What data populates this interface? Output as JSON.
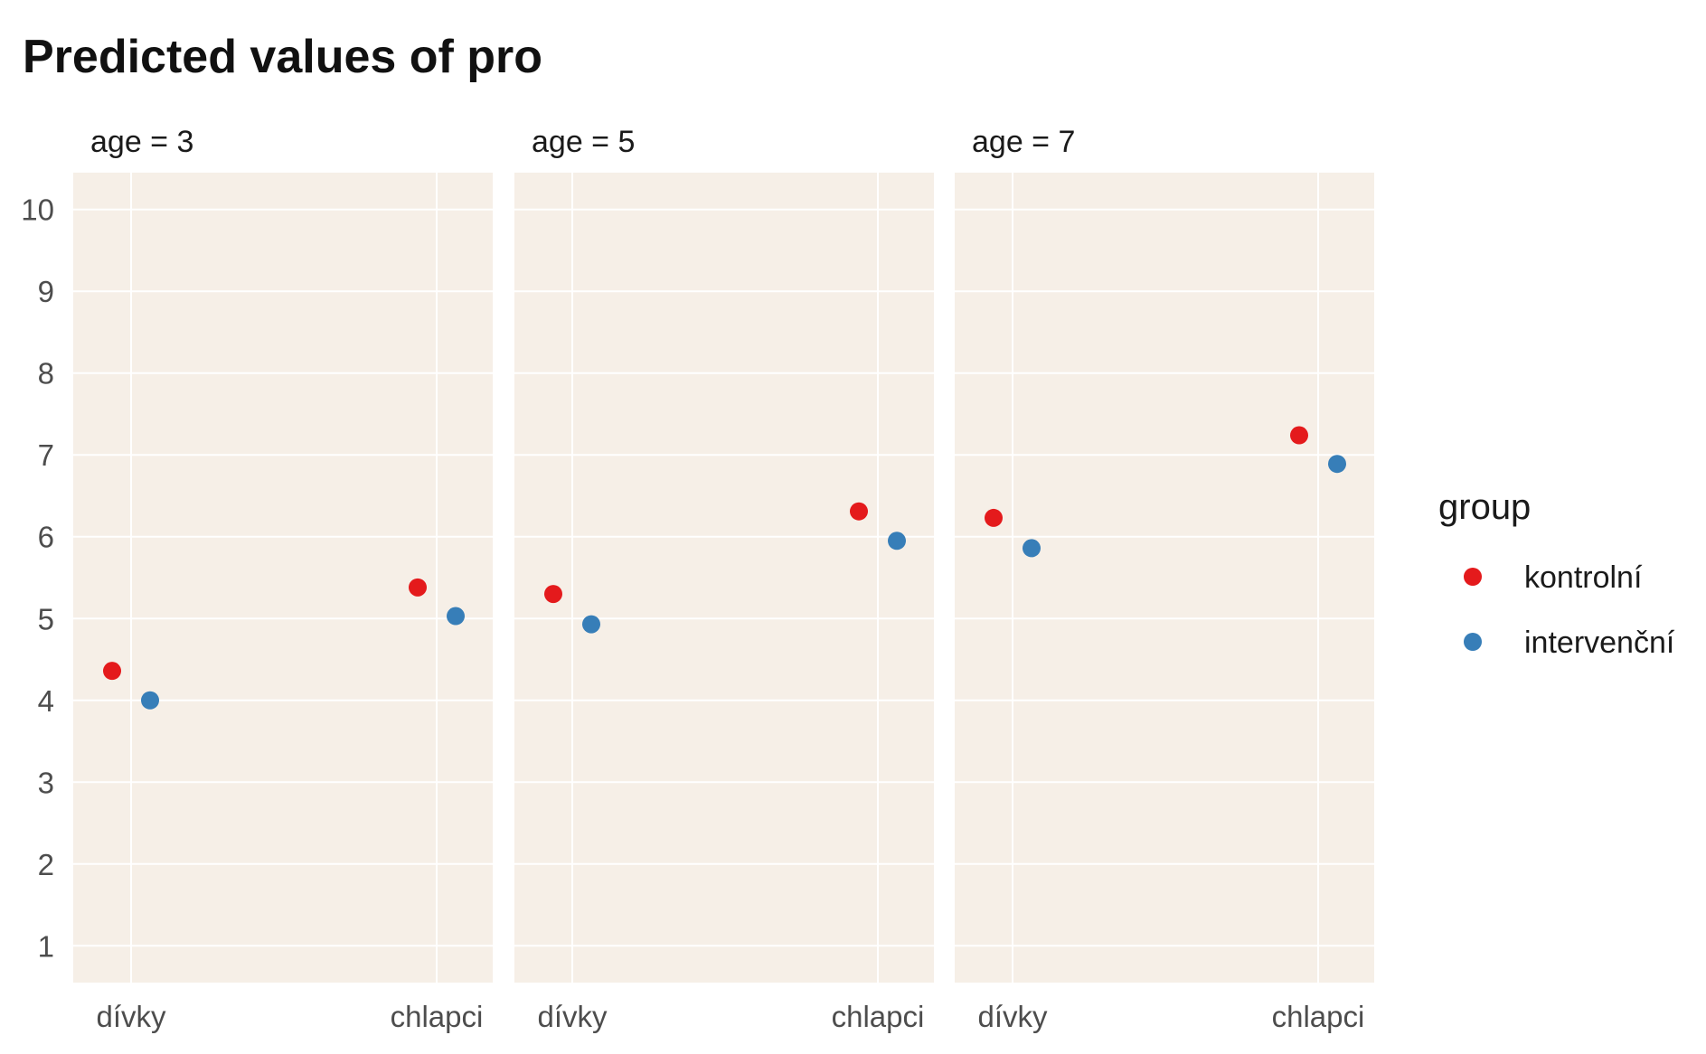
{
  "chart_data": {
    "type": "scatter",
    "title": "Predicted values of pro",
    "xlabel": "",
    "ylabel": "",
    "ylim": [
      0.55,
      10.45
    ],
    "yticks": [
      1,
      2,
      3,
      4,
      5,
      6,
      7,
      8,
      9,
      10
    ],
    "categories": [
      "dívky",
      "chlapci"
    ],
    "grid": true,
    "panel_background": "#f6efe7",
    "facets": [
      {
        "label": "age = 3",
        "series": [
          {
            "name": "kontrolní",
            "values": [
              4.36,
              5.38
            ]
          },
          {
            "name": "intervenční",
            "values": [
              4.0,
              5.03
            ]
          }
        ]
      },
      {
        "label": "age = 5",
        "series": [
          {
            "name": "kontrolní",
            "values": [
              5.3,
              6.31
            ]
          },
          {
            "name": "intervenční",
            "values": [
              4.93,
              5.95
            ]
          }
        ]
      },
      {
        "label": "age = 7",
        "series": [
          {
            "name": "kontrolní",
            "values": [
              6.23,
              7.24
            ]
          },
          {
            "name": "intervenční",
            "values": [
              5.86,
              6.89
            ]
          }
        ]
      }
    ],
    "legend": {
      "title": "group",
      "placement": "right",
      "entries": [
        {
          "name": "kontrolní",
          "color": "#e41a1c"
        },
        {
          "name": "intervenční",
          "color": "#377eb8"
        }
      ]
    }
  }
}
